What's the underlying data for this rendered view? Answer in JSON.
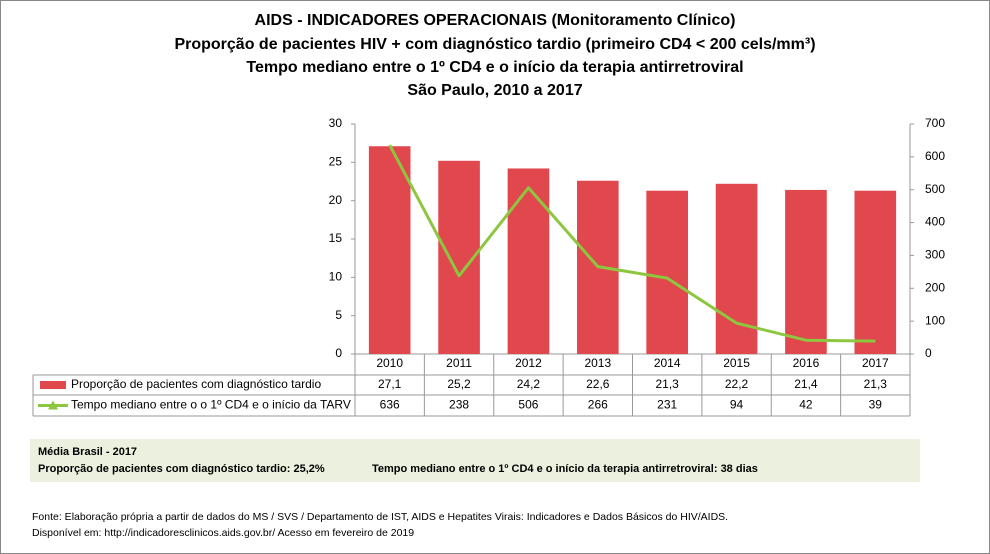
{
  "chart_data": {
    "type": "bar",
    "title": [
      "AIDS - INDICADORES OPERACIONAIS (Monitoramento Clínico)",
      "Proporção de pacientes HIV + com diagnóstico tardio (primeiro CD4 < 200 cels/mm³)",
      "Tempo mediano entre o 1º CD4 e o início da terapia antirretroviral",
      "São Paulo, 2010 a 2017"
    ],
    "categories": [
      "2010",
      "2011",
      "2012",
      "2013",
      "2014",
      "2015",
      "2016",
      "2017"
    ],
    "series": [
      {
        "name": "Proporção de pacientes com diagnóstico tardio",
        "type": "bar",
        "color": "#e0484e",
        "values": [
          27.1,
          25.2,
          24.2,
          22.6,
          21.3,
          22.2,
          21.4,
          21.3
        ],
        "value_labels": [
          "27,1",
          "25,2",
          "24,2",
          "22,6",
          "21,3",
          "22,2",
          "21,4",
          "21,3"
        ]
      },
      {
        "name": "Tempo mediano entre o o 1º CD4 e o início da TARV",
        "type": "line",
        "axis": "y2",
        "color": "#8dc63f",
        "values": [
          636,
          238,
          506,
          266,
          231,
          94,
          42,
          39
        ]
      }
    ],
    "ylim": [
      0,
      30
    ],
    "yticks": [
      0,
      5,
      10,
      15,
      20,
      25,
      30
    ],
    "y2lim": [
      0,
      700
    ],
    "y2ticks": [
      0,
      100,
      200,
      300,
      400,
      500,
      600,
      700
    ]
  },
  "summary": {
    "title": "Média Brasil - 2017",
    "items": [
      "Proporção de pacientes com diagnóstico  tardio: 25,2%",
      "Tempo mediano entre o 1º CD4 e o início da terapia antirretroviral: 38 dias"
    ]
  },
  "footer": [
    "Fonte: Elaboração própria a partir de dados do  MS / SVS / Departamento de IST, AIDS e Hepatites Virais: Indicadores e Dados Básicos do HIV/AIDS.",
    "Disponível em: http://indicadoresclinicos.aids.gov.br/ Acesso em fevereiro de 2019"
  ]
}
